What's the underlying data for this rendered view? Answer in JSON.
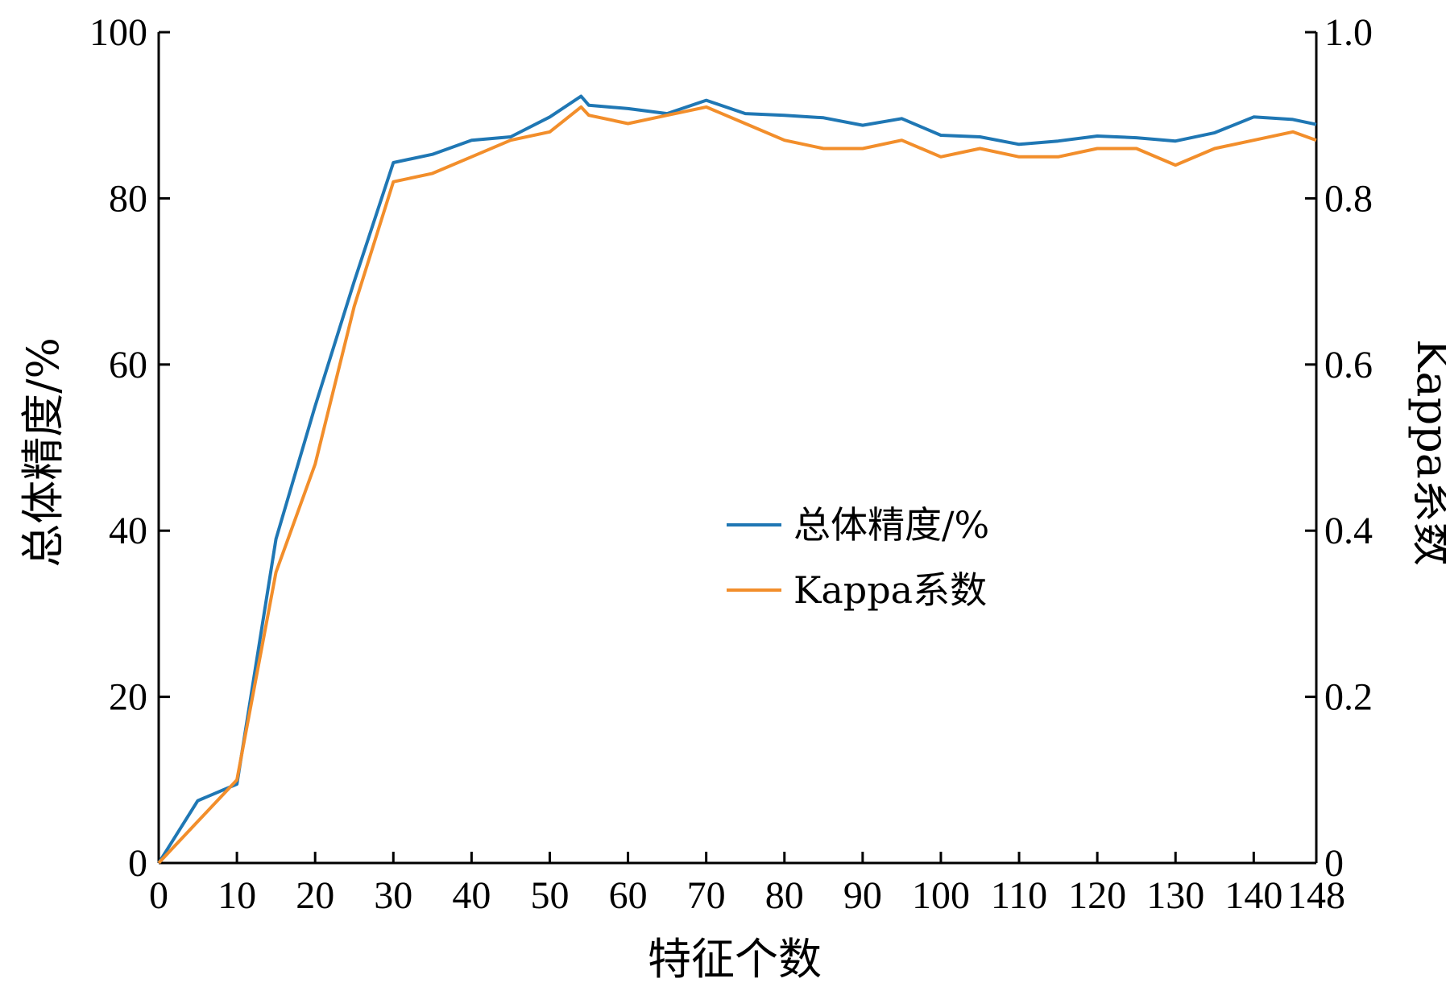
{
  "chart_data": {
    "type": "line",
    "xlabel": "特征个数",
    "ylabel_left": "总体精度/%",
    "ylabel_right": "Kappa系数",
    "xlim": [
      0,
      148
    ],
    "ylim_left": [
      0,
      100
    ],
    "ylim_right": [
      0,
      1.0
    ],
    "x_ticks": [
      0,
      10,
      20,
      30,
      40,
      50,
      60,
      70,
      80,
      90,
      100,
      110,
      120,
      130,
      140,
      148
    ],
    "y_ticks_left": [
      "0",
      "20",
      "40",
      "60",
      "80",
      "100"
    ],
    "y_ticks_right": [
      "0",
      "0.2",
      "0.4",
      "0.6",
      "0.8",
      "1.0"
    ],
    "grid": false,
    "legend_position": "center-right",
    "series": [
      {
        "name": "总体精度/%",
        "axis": "left",
        "color": "#1f77b4",
        "x": [
          0,
          5,
          10,
          15,
          20,
          25,
          30,
          35,
          40,
          45,
          50,
          54,
          55,
          60,
          65,
          70,
          75,
          80,
          85,
          90,
          95,
          100,
          105,
          110,
          115,
          120,
          125,
          130,
          135,
          140,
          145,
          148
        ],
        "y": [
          0,
          7.5,
          9.5,
          39,
          55,
          70,
          84.3,
          85.3,
          87,
          87.4,
          89.8,
          92.3,
          91.2,
          90.8,
          90.2,
          91.8,
          90.2,
          90,
          89.7,
          88.8,
          89.6,
          87.6,
          87.4,
          86.5,
          86.9,
          87.5,
          87.3,
          86.9,
          87.9,
          89.8,
          89.5,
          88.9
        ]
      },
      {
        "name": "Kappa系数",
        "axis": "right",
        "color": "#f28e2b",
        "x": [
          0,
          5,
          10,
          15,
          20,
          25,
          30,
          35,
          40,
          45,
          50,
          54,
          55,
          60,
          65,
          70,
          75,
          80,
          85,
          90,
          95,
          100,
          105,
          110,
          115,
          120,
          125,
          130,
          135,
          140,
          145,
          148
        ],
        "y": [
          0,
          0.05,
          0.1,
          0.35,
          0.48,
          0.67,
          0.82,
          0.83,
          0.85,
          0.87,
          0.88,
          0.91,
          0.9,
          0.89,
          0.9,
          0.91,
          0.89,
          0.87,
          0.86,
          0.86,
          0.87,
          0.85,
          0.86,
          0.85,
          0.85,
          0.86,
          0.86,
          0.84,
          0.86,
          0.87,
          0.88,
          0.87
        ]
      }
    ]
  }
}
